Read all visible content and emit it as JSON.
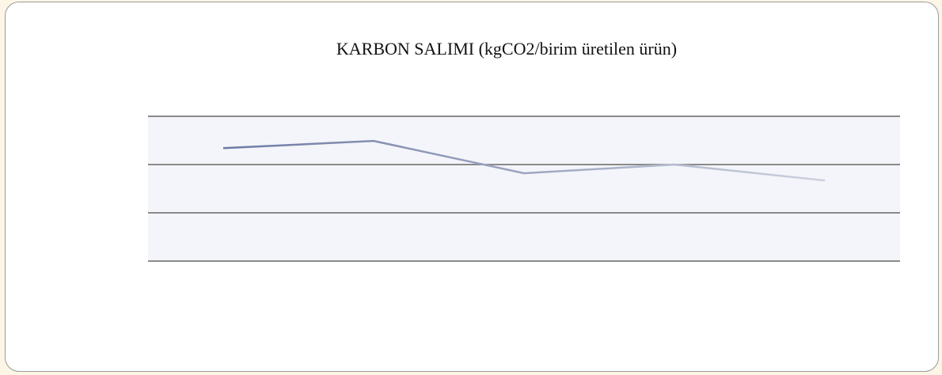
{
  "chart_data": {
    "type": "line",
    "title": "KARBON SALIMI (kgCO2/birim üretilen ürün)",
    "categories": [
      null,
      null,
      null,
      null,
      null
    ],
    "series": [
      {
        "name": null,
        "color": "#6d7aa3",
        "values": [
          2.34,
          2.49,
          1.82,
          2.0,
          1.67
        ]
      }
    ],
    "ylim": [
      0,
      3
    ],
    "yticks": [
      0,
      1,
      2,
      3
    ],
    "grid": true
  }
}
